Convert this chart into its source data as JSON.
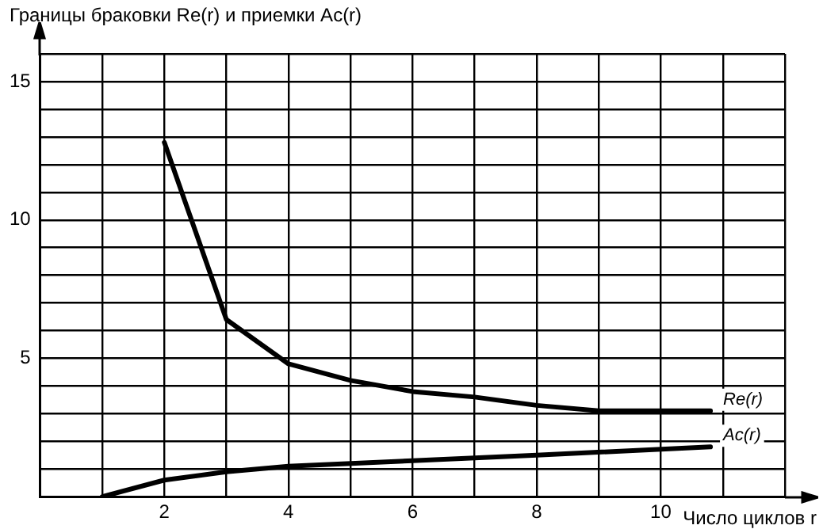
{
  "chart_data": {
    "type": "line",
    "xlabel": "Число циклов r",
    "ylabel": "Границы браковки Re(r) и приемки Ac(r)",
    "xlim": [
      0,
      12
    ],
    "ylim": [
      0,
      16
    ],
    "xticks": [
      {
        "value": 0,
        "label": null
      },
      {
        "value": 1,
        "label": null
      },
      2,
      {
        "value": 3,
        "label": null
      },
      4,
      {
        "value": 5,
        "label": null
      },
      6,
      {
        "value": 7,
        "label": null
      },
      8,
      {
        "value": 9,
        "label": null
      },
      10,
      {
        "value": 11,
        "label": null
      },
      {
        "value": 12,
        "label": null
      }
    ],
    "yticks": [
      {
        "value": 0,
        "label": null
      },
      {
        "value": 1,
        "label": null
      },
      {
        "value": 2,
        "label": null
      },
      {
        "value": 3,
        "label": null
      },
      {
        "value": 4,
        "label": null
      },
      5,
      {
        "value": 6,
        "label": null
      },
      {
        "value": 7,
        "label": null
      },
      {
        "value": 8,
        "label": null
      },
      {
        "value": 9,
        "label": null
      },
      10,
      {
        "value": 11,
        "label": null
      },
      {
        "value": 12,
        "label": null
      },
      {
        "value": 13,
        "label": null
      },
      {
        "value": 14,
        "label": null
      },
      15,
      {
        "value": 16,
        "label": null
      }
    ],
    "grid": true,
    "legend": false,
    "marker": "none",
    "line_style": "solid",
    "series": [
      {
        "name": "Re(r)",
        "color": "#000000",
        "x": [
          2,
          3,
          4,
          5,
          6,
          7,
          8,
          9,
          10.8
        ],
        "values": [
          12.8,
          6.4,
          4.8,
          4.2,
          3.8,
          3.6,
          3.3,
          3.1,
          3.1
        ]
      },
      {
        "name": "Ac(r)",
        "color": "#000000",
        "x": [
          1,
          2,
          3,
          4,
          6,
          8,
          10.8
        ],
        "values": [
          0,
          0.6,
          0.9,
          1.1,
          1.3,
          1.5,
          1.8
        ]
      }
    ]
  }
}
